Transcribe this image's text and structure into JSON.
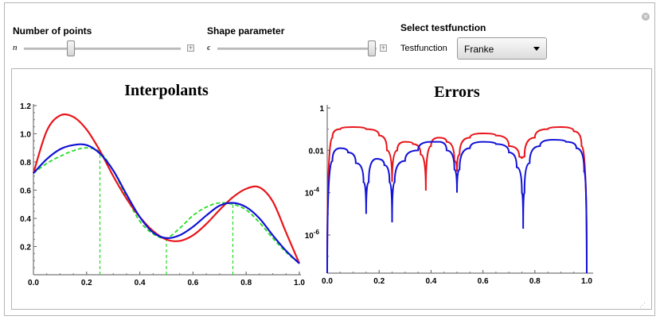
{
  "controls": {
    "points": {
      "label": "Number of points",
      "symbol": "n",
      "value_fraction": 0.3
    },
    "shape": {
      "label": "Shape parameter",
      "symbol": "ϵ",
      "value_fraction": 0.97
    },
    "testfunction": {
      "heading": "Select testfunction",
      "label": "Testfunction",
      "selected": "Franke"
    }
  },
  "colors": {
    "red": "#e8141a",
    "blue": "#1212d8",
    "green": "#22dd22"
  },
  "chart_data": [
    {
      "type": "line",
      "title": "Interpolants",
      "xlim": [
        0,
        1
      ],
      "ylim": [
        0,
        1.2
      ],
      "xticks": [
        "0.0",
        "0.2",
        "0.4",
        "0.6",
        "0.8",
        "1.0"
      ],
      "yticks": [
        "0.2",
        "0.4",
        "0.6",
        "0.8",
        "1.0",
        "1.2"
      ],
      "series": [
        {
          "color": "red",
          "x": [
            0,
            0.05,
            0.1,
            0.15,
            0.2,
            0.25,
            0.3,
            0.35,
            0.4,
            0.45,
            0.5,
            0.55,
            0.6,
            0.65,
            0.7,
            0.75,
            0.8,
            0.85,
            0.9,
            0.95,
            1.0
          ],
          "y": [
            0.72,
            1.02,
            1.13,
            1.12,
            1.03,
            0.88,
            0.7,
            0.54,
            0.41,
            0.31,
            0.25,
            0.24,
            0.28,
            0.36,
            0.46,
            0.55,
            0.61,
            0.62,
            0.52,
            0.3,
            0.08
          ]
        },
        {
          "color": "blue",
          "x": [
            0,
            0.05,
            0.1,
            0.15,
            0.2,
            0.25,
            0.3,
            0.35,
            0.4,
            0.45,
            0.5,
            0.55,
            0.6,
            0.65,
            0.7,
            0.75,
            0.8,
            0.85,
            0.9,
            0.95,
            1.0
          ],
          "y": [
            0.72,
            0.82,
            0.89,
            0.92,
            0.92,
            0.86,
            0.74,
            0.57,
            0.41,
            0.3,
            0.26,
            0.28,
            0.34,
            0.42,
            0.49,
            0.51,
            0.48,
            0.4,
            0.28,
            0.17,
            0.08
          ]
        },
        {
          "color": "green",
          "dashed": true,
          "x": [
            0,
            0.05,
            0.1,
            0.15,
            0.2,
            0.25,
            0.3,
            0.35,
            0.4,
            0.45,
            0.5,
            0.55,
            0.6,
            0.65,
            0.7,
            0.75,
            0.8,
            0.85,
            0.9,
            0.95,
            1.0
          ],
          "y": [
            0.72,
            0.79,
            0.84,
            0.88,
            0.9,
            0.87,
            0.74,
            0.55,
            0.38,
            0.29,
            0.26,
            0.33,
            0.42,
            0.48,
            0.51,
            0.5,
            0.46,
            0.37,
            0.26,
            0.16,
            0.08
          ]
        }
      ],
      "nodes": {
        "x": [
          0.25,
          0.5,
          0.75
        ],
        "y": [
          0.87,
          0.26,
          0.5
        ]
      }
    },
    {
      "type": "line",
      "title": "Errors",
      "xlim": [
        0,
        1
      ],
      "yscale": "log",
      "ylim_log10": [
        -7.8,
        0
      ],
      "xticks": [
        "0.0",
        "0.2",
        "0.4",
        "0.6",
        "0.8",
        "1.0"
      ],
      "yticks": [
        "1",
        "0.01",
        "10^-4",
        "10^-6"
      ],
      "series": [
        {
          "color": "red",
          "x": [
            0,
            0.02,
            0.05,
            0.1,
            0.15,
            0.2,
            0.23,
            0.25,
            0.27,
            0.3,
            0.33,
            0.36,
            0.38,
            0.4,
            0.43,
            0.46,
            0.49,
            0.5,
            0.51,
            0.55,
            0.6,
            0.65,
            0.7,
            0.74,
            0.75,
            0.76,
            0.8,
            0.85,
            0.9,
            0.95,
            0.98,
            1.0
          ],
          "y_log10": [
            -7.8,
            -1.4,
            -1.0,
            -0.9,
            -1.0,
            -1.3,
            -2.0,
            -3.5,
            -2.0,
            -1.6,
            -1.7,
            -2.2,
            -3.9,
            -1.8,
            -1.4,
            -1.6,
            -2.5,
            -3.0,
            -2.2,
            -1.4,
            -1.2,
            -1.3,
            -1.8,
            -2.3,
            -2.4,
            -2.3,
            -1.4,
            -1.0,
            -0.9,
            -1.1,
            -1.8,
            -7.8
          ]
        },
        {
          "color": "blue",
          "x": [
            0,
            0.02,
            0.05,
            0.08,
            0.11,
            0.14,
            0.15,
            0.16,
            0.19,
            0.22,
            0.24,
            0.25,
            0.26,
            0.3,
            0.35,
            0.4,
            0.43,
            0.46,
            0.49,
            0.5,
            0.51,
            0.55,
            0.6,
            0.65,
            0.7,
            0.73,
            0.75,
            0.755,
            0.76,
            0.78,
            0.82,
            0.87,
            0.92,
            0.96,
            0.99,
            1.0
          ],
          "y_log10": [
            -7.8,
            -2.5,
            -1.9,
            -2.1,
            -2.6,
            -3.5,
            -5.0,
            -3.5,
            -2.4,
            -2.7,
            -3.5,
            -5.4,
            -3.5,
            -2.5,
            -2.0,
            -1.6,
            -1.6,
            -2.0,
            -2.9,
            -4.0,
            -2.9,
            -1.9,
            -1.6,
            -1.7,
            -2.1,
            -2.8,
            -4.0,
            -5.7,
            -4.0,
            -2.6,
            -1.8,
            -1.5,
            -1.6,
            -1.9,
            -3.0,
            -7.8
          ]
        }
      ]
    }
  ]
}
